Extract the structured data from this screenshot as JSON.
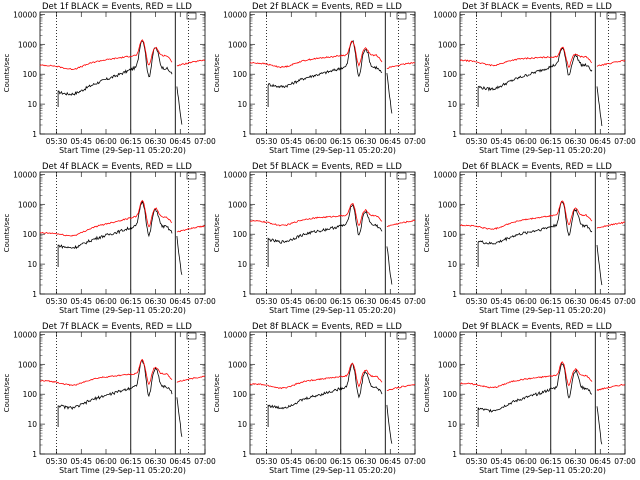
{
  "figure": {
    "x_title": "Start Time (29-Sep-11 05:20:20)",
    "y_title": "Counts/sec",
    "colors": {
      "events": "#000000",
      "lld": "#ff0000",
      "axes": "#000000",
      "background": "#ffffff"
    }
  },
  "chart_data": [
    {
      "type": "line",
      "title": "Det 1f BLACK = Events, RED = LLD",
      "xlabel": "Start Time (29-Sep-11 05:20:20)",
      "ylabel": "Counts/sec",
      "x_ticks": [
        "05:30",
        "05:45",
        "06:00",
        "06:15",
        "06:30",
        "06:45",
        "07:00"
      ],
      "y_ticks": [
        "1",
        "10",
        "100",
        "1000",
        "10000"
      ],
      "y_scale": "log",
      "ylim": [
        1,
        12000
      ],
      "xlim": [
        "05:20",
        "07:00"
      ],
      "vlines_dotted": [
        "05:30",
        "06:50"
      ],
      "vlines_solid": [
        "06:15",
        "06:42"
      ],
      "series": [
        {
          "name": "Events",
          "color": "#000000",
          "base": 30,
          "end": 160,
          "peak": 1400,
          "tail": 2
        },
        {
          "name": "LLD",
          "color": "#ff0000",
          "base": 200,
          "end": 420,
          "peak": 1400,
          "tail": 240
        }
      ]
    },
    {
      "type": "line",
      "title": "Det 2f BLACK = Events, RED = LLD",
      "xlabel": "Start Time (29-Sep-11 05:20:20)",
      "ylabel": "Counts/sec",
      "x_ticks": [
        "05:30",
        "05:45",
        "06:00",
        "06:15",
        "06:30",
        "06:45",
        "07:00"
      ],
      "y_ticks": [
        "1",
        "10",
        "100",
        "1000",
        "10000"
      ],
      "y_scale": "log",
      "ylim": [
        1,
        12000
      ],
      "xlim": [
        "05:20",
        "07:00"
      ],
      "vlines_dotted": [
        "05:30",
        "06:50"
      ],
      "vlines_solid": [
        "06:15",
        "06:42"
      ],
      "series": [
        {
          "name": "Events",
          "color": "#000000",
          "base": 55,
          "end": 170,
          "peak": 1300,
          "tail": 5
        },
        {
          "name": "LLD",
          "color": "#ff0000",
          "base": 240,
          "end": 430,
          "peak": 1300,
          "tail": 200
        }
      ]
    },
    {
      "type": "line",
      "title": "Det 3f BLACK = Events, RED = LLD",
      "xlabel": "Start Time (29-Sep-11 05:20:20)",
      "ylabel": "Counts/sec",
      "x_ticks": [
        "05:30",
        "05:45",
        "06:00",
        "06:15",
        "06:30",
        "06:45",
        "07:00"
      ],
      "y_ticks": [
        "1",
        "10",
        "100",
        "1000",
        "10000"
      ],
      "y_scale": "log",
      "ylim": [
        1,
        12000
      ],
      "xlim": [
        "05:20",
        "07:00"
      ],
      "vlines_dotted": [
        "05:30",
        "06:50"
      ],
      "vlines_solid": [
        "06:15",
        "06:42"
      ],
      "series": [
        {
          "name": "Events",
          "color": "#000000",
          "base": 45,
          "end": 200,
          "peak": 750,
          "tail": 2
        },
        {
          "name": "LLD",
          "color": "#ff0000",
          "base": 290,
          "end": 380,
          "peak": 800,
          "tail": 230
        }
      ]
    },
    {
      "type": "line",
      "title": "Det 4f BLACK = Events, RED = LLD",
      "xlabel": "Start Time (29-Sep-11 05:20:20)",
      "ylabel": "Counts/sec",
      "x_ticks": [
        "05:30",
        "05:45",
        "06:00",
        "06:15",
        "06:30",
        "06:45",
        "07:00"
      ],
      "y_ticks": [
        "1",
        "10",
        "100",
        "1000",
        "10000"
      ],
      "y_scale": "log",
      "ylim": [
        1,
        12000
      ],
      "xlim": [
        "05:20",
        "07:00"
      ],
      "vlines_dotted": [
        "05:30",
        "06:50"
      ],
      "vlines_solid": [
        "06:15",
        "06:42"
      ],
      "series": [
        {
          "name": "Events",
          "color": "#000000",
          "base": 50,
          "end": 180,
          "peak": 1200,
          "tail": 4
        },
        {
          "name": "LLD",
          "color": "#ff0000",
          "base": 110,
          "end": 380,
          "peak": 1300,
          "tail": 150
        }
      ]
    },
    {
      "type": "line",
      "title": "Det 5f BLACK = Events, RED = LLD",
      "xlabel": "Start Time (29-Sep-11 05:20:20)",
      "ylabel": "Counts/sec",
      "x_ticks": [
        "05:30",
        "05:45",
        "06:00",
        "06:15",
        "06:30",
        "06:45",
        "07:00"
      ],
      "y_ticks": [
        "1",
        "10",
        "100",
        "1000",
        "10000"
      ],
      "y_scale": "log",
      "ylim": [
        1,
        12000
      ],
      "xlim": [
        "05:20",
        "07:00"
      ],
      "vlines_dotted": [
        "05:30",
        "06:50"
      ],
      "vlines_solid": [
        "06:15",
        "06:42"
      ],
      "series": [
        {
          "name": "Events",
          "color": "#000000",
          "base": 80,
          "end": 200,
          "peak": 1000,
          "tail": 2
        },
        {
          "name": "LLD",
          "color": "#ff0000",
          "base": 280,
          "end": 420,
          "peak": 1100,
          "tail": 230
        }
      ]
    },
    {
      "type": "line",
      "title": "Det 6f BLACK = Events, RED = LLD",
      "xlabel": "Start Time (29-Sep-11 05:20:20)",
      "ylabel": "Counts/sec",
      "x_ticks": [
        "05:30",
        "05:45",
        "06:00",
        "06:15",
        "06:30",
        "06:45",
        "07:00"
      ],
      "y_ticks": [
        "1",
        "10",
        "100",
        "1000",
        "10000"
      ],
      "y_scale": "log",
      "ylim": [
        1,
        12000
      ],
      "xlim": [
        "05:20",
        "07:00"
      ],
      "vlines_dotted": [
        "05:30",
        "06:50"
      ],
      "vlines_solid": [
        "06:15",
        "06:42"
      ],
      "series": [
        {
          "name": "Events",
          "color": "#000000",
          "base": 70,
          "end": 190,
          "peak": 1200,
          "tail": 2
        },
        {
          "name": "LLD",
          "color": "#ff0000",
          "base": 200,
          "end": 430,
          "peak": 1300,
          "tail": 200
        }
      ]
    },
    {
      "type": "line",
      "title": "Det 7f BLACK = Events, RED = LLD",
      "xlabel": "Start Time (29-Sep-11 05:20:20)",
      "ylabel": "Counts/sec",
      "x_ticks": [
        "05:30",
        "05:45",
        "06:00",
        "06:15",
        "06:30",
        "06:45",
        "07:00"
      ],
      "y_ticks": [
        "1",
        "10",
        "100",
        "1000",
        "10000"
      ],
      "y_scale": "log",
      "ylim": [
        1,
        12000
      ],
      "xlim": [
        "05:20",
        "07:00"
      ],
      "vlines_dotted": [
        "05:30",
        "06:50"
      ],
      "vlines_solid": [
        "06:15",
        "06:42"
      ],
      "series": [
        {
          "name": "Events",
          "color": "#000000",
          "base": 50,
          "end": 180,
          "peak": 1300,
          "tail": 4
        },
        {
          "name": "LLD",
          "color": "#ff0000",
          "base": 280,
          "end": 480,
          "peak": 1400,
          "tail": 320
        }
      ]
    },
    {
      "type": "line",
      "title": "Det 8f BLACK = Events, RED = LLD",
      "xlabel": "Start Time (29-Sep-11 05:20:20)",
      "ylabel": "Counts/sec",
      "x_ticks": [
        "05:30",
        "05:45",
        "06:00",
        "06:15",
        "06:30",
        "06:45",
        "07:00"
      ],
      "y_ticks": [
        "1",
        "10",
        "100",
        "1000",
        "10000"
      ],
      "y_scale": "log",
      "ylim": [
        1,
        12000
      ],
      "xlim": [
        "05:20",
        "07:00"
      ],
      "vlines_dotted": [
        "05:30",
        "06:50"
      ],
      "vlines_solid": [
        "06:15",
        "06:42"
      ],
      "series": [
        {
          "name": "Events",
          "color": "#000000",
          "base": 50,
          "end": 170,
          "peak": 1000,
          "tail": 2
        },
        {
          "name": "LLD",
          "color": "#ff0000",
          "base": 220,
          "end": 400,
          "peak": 1100,
          "tail": 170
        }
      ]
    },
    {
      "type": "line",
      "title": "Det 9f BLACK = Events, RED = LLD",
      "xlabel": "Start Time (29-Sep-11 05:20:20)",
      "ylabel": "Counts/sec",
      "x_ticks": [
        "05:30",
        "05:45",
        "06:00",
        "06:15",
        "06:30",
        "06:45",
        "07:00"
      ],
      "y_ticks": [
        "1",
        "10",
        "100",
        "1000",
        "10000"
      ],
      "y_scale": "log",
      "ylim": [
        1,
        12000
      ],
      "xlim": [
        "05:20",
        "07:00"
      ],
      "vlines_dotted": [
        "05:30",
        "06:50"
      ],
      "vlines_solid": [
        "06:15",
        "06:42"
      ],
      "series": [
        {
          "name": "Events",
          "color": "#000000",
          "base": 40,
          "end": 160,
          "peak": 1100,
          "tail": 2
        },
        {
          "name": "LLD",
          "color": "#ff0000",
          "base": 230,
          "end": 420,
          "peak": 1200,
          "tail": 170
        }
      ]
    }
  ]
}
